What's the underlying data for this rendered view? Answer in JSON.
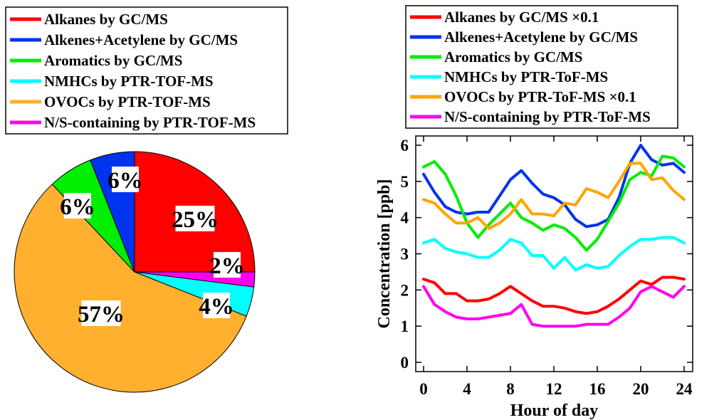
{
  "chart_data": [
    {
      "type": "pie",
      "legend": {
        "placement": "top",
        "entries": [
          {
            "label": "Alkanes by GC/MS",
            "color": "#ff0000"
          },
          {
            "label": "Alkenes+Acetylene by GC/MS",
            "color": "#0033ee"
          },
          {
            "label": "Aromatics by GC/MS",
            "color": "#00ee00"
          },
          {
            "label": "NMHCs by PTR-TOF-MS",
            "color": "#00ffff"
          },
          {
            "label": "OVOCs by PTR-TOF-MS",
            "color": "#ffb02e"
          },
          {
            "label": "N/S-containing by PTR-TOF-MS",
            "color": "#ff00ee"
          }
        ]
      },
      "slices": [
        {
          "name": "Alkanes by GC/MS",
          "value": 25,
          "label": "25%",
          "color": "#ff0000"
        },
        {
          "name": "N/S-containing by PTR-TOF-MS",
          "value": 2,
          "label": "2%",
          "color": "#ff00ee"
        },
        {
          "name": "NMHCs by PTR-TOF-MS",
          "value": 4,
          "label": "4%",
          "color": "#00ffff"
        },
        {
          "name": "OVOCs by PTR-TOF-MS",
          "value": 57,
          "label": "57%",
          "color": "#ffb02e"
        },
        {
          "name": "Aromatics by GC/MS",
          "value": 6,
          "label": "6%",
          "color": "#00ee00"
        },
        {
          "name": "Alkenes+Acetylene by GC/MS",
          "value": 6,
          "label": "6%",
          "color": "#0033ee"
        }
      ]
    },
    {
      "type": "line",
      "xlabel": "Hour of day",
      "ylabel": "Concentration [ppb]",
      "xlim": [
        0,
        24
      ],
      "ylim": [
        0,
        6
      ],
      "xticks": [
        "0",
        "4",
        "8",
        "12",
        "16",
        "20",
        "24"
      ],
      "yticks": [
        "0",
        "1",
        "2",
        "3",
        "4",
        "5",
        "6"
      ],
      "grid": false,
      "legend": {
        "placement": "top"
      },
      "x": [
        0,
        1,
        2,
        3,
        4,
        5,
        6,
        7,
        8,
        9,
        10,
        11,
        12,
        13,
        14,
        15,
        16,
        17,
        18,
        19,
        20,
        21,
        22,
        23,
        24
      ],
      "series": [
        {
          "name": "Alkanes by GC/MS ×0.1",
          "color": "#ff0000",
          "values": [
            2.3,
            2.2,
            1.9,
            1.9,
            1.7,
            1.7,
            1.75,
            1.9,
            2.1,
            1.9,
            1.7,
            1.55,
            1.55,
            1.5,
            1.4,
            1.35,
            1.4,
            1.55,
            1.75,
            2.0,
            2.25,
            2.15,
            2.35,
            2.35,
            2.3
          ]
        },
        {
          "name": "Alkenes+Acetylene by GC/MS",
          "color": "#0033ee",
          "values": [
            5.2,
            4.7,
            4.3,
            4.15,
            4.1,
            4.15,
            4.15,
            4.6,
            5.05,
            5.3,
            4.95,
            4.65,
            4.55,
            4.35,
            3.95,
            3.75,
            3.8,
            3.95,
            4.55,
            5.5,
            6.0,
            5.6,
            5.45,
            5.5,
            5.25
          ]
        },
        {
          "name": "Aromatics by GC/MS",
          "color": "#00ee00",
          "values": [
            5.4,
            5.55,
            5.2,
            4.6,
            3.85,
            3.45,
            3.8,
            4.1,
            4.4,
            4.0,
            3.85,
            3.65,
            3.8,
            3.7,
            3.45,
            3.1,
            3.4,
            3.9,
            4.4,
            5.05,
            5.25,
            5.15,
            5.7,
            5.65,
            5.4
          ]
        },
        {
          "name": "NMHCs by PTR-ToF-MS",
          "color": "#00ffff",
          "values": [
            3.3,
            3.4,
            3.15,
            3.05,
            3.0,
            2.9,
            2.9,
            3.1,
            3.4,
            3.3,
            2.95,
            2.95,
            2.6,
            2.9,
            2.55,
            2.7,
            2.6,
            2.65,
            2.95,
            3.2,
            3.4,
            3.4,
            3.45,
            3.45,
            3.3
          ]
        },
        {
          "name": "OVOCs by PTR-ToF-MS ×0.1",
          "color": "#ffa500",
          "values": [
            4.5,
            4.4,
            4.1,
            3.85,
            3.85,
            4.0,
            3.7,
            3.85,
            4.1,
            4.5,
            4.1,
            4.1,
            4.05,
            4.4,
            4.35,
            4.8,
            4.7,
            4.55,
            5.0,
            5.5,
            5.5,
            5.05,
            5.1,
            4.75,
            4.5
          ]
        },
        {
          "name": "N/S-containing by PTR-ToF-MS",
          "color": "#ff00ee",
          "values": [
            2.1,
            1.6,
            1.4,
            1.25,
            1.2,
            1.2,
            1.25,
            1.3,
            1.35,
            1.6,
            1.05,
            1.0,
            1.0,
            1.0,
            1.0,
            1.05,
            1.05,
            1.05,
            1.25,
            1.5,
            1.95,
            2.1,
            1.95,
            1.8,
            2.1
          ]
        }
      ]
    }
  ]
}
